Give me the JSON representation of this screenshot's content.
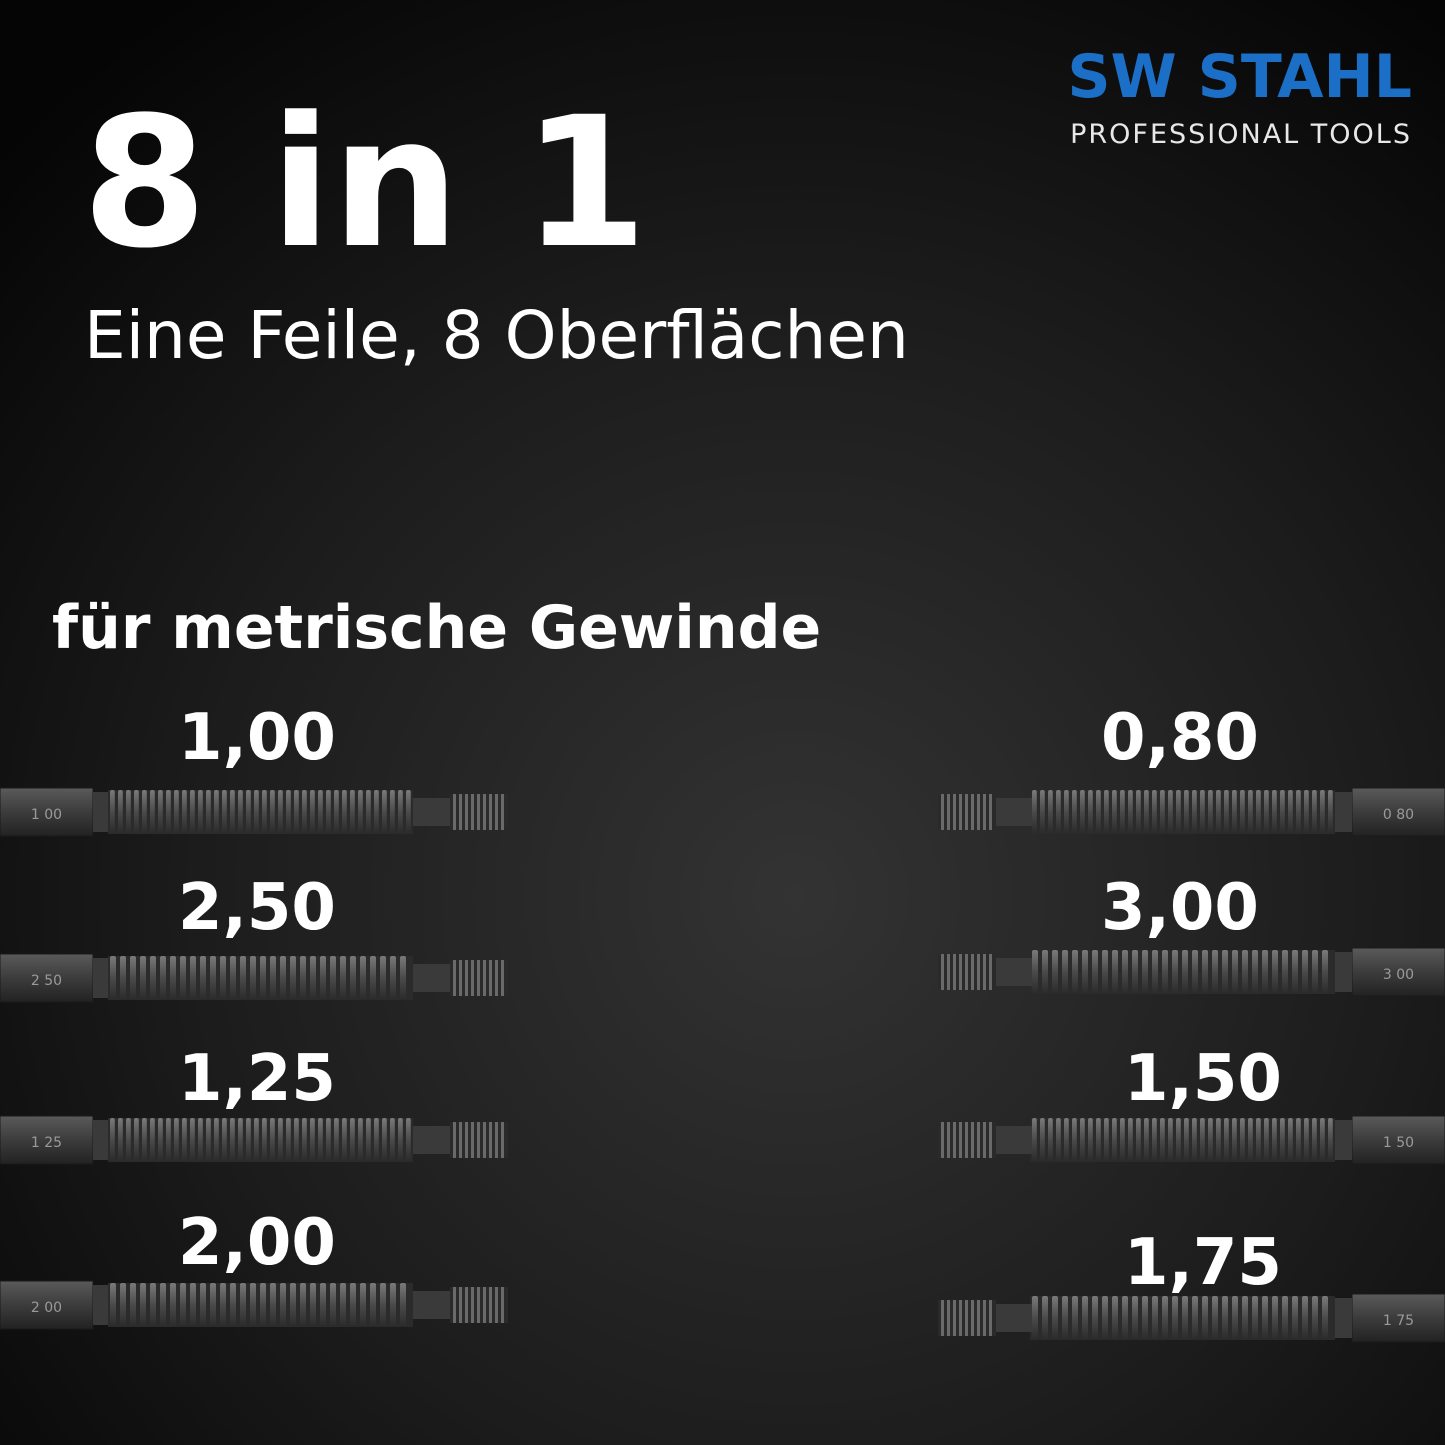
{
  "logo": {
    "brand": "SW STAHL",
    "tagline": "PROFESSIONAL TOOLS"
  },
  "headline": "8 in 1",
  "subheadline": "Eine Feile, 8 Oberflächen",
  "section_title": "für metrische Gewinde",
  "files": {
    "left": [
      {
        "size": "1,00",
        "stamp": "1 00"
      },
      {
        "size": "2,50",
        "stamp": "2 50"
      },
      {
        "size": "1,25",
        "stamp": "1 25"
      },
      {
        "size": "2,00",
        "stamp": "2 00"
      }
    ],
    "right": [
      {
        "size": "0,80",
        "stamp": "0 80"
      },
      {
        "size": "3,00",
        "stamp": "3 00"
      },
      {
        "size": "1,50",
        "stamp": "1 50"
      },
      {
        "size": "1,75",
        "stamp": "1 75"
      }
    ]
  }
}
